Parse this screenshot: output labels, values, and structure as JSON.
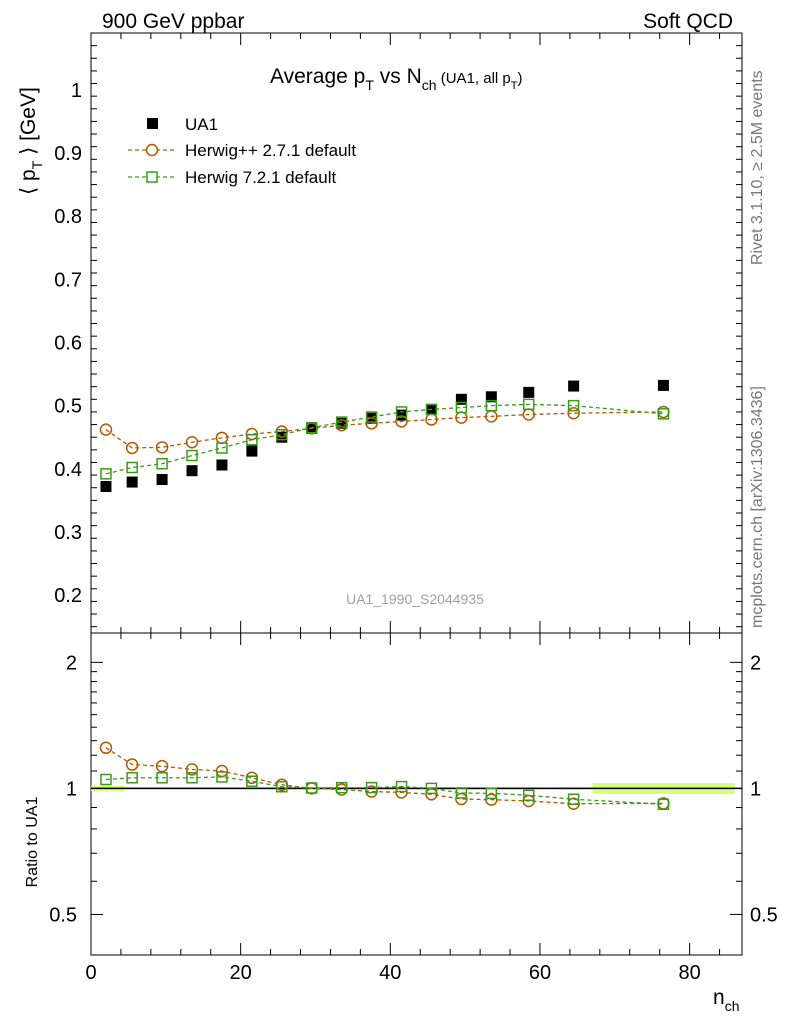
{
  "header": {
    "left": "900 GeV ppbar",
    "right": "Soft QCD"
  },
  "side_labels": {
    "rivet": "Rivet 3.1.10, ≥ 2.5M events",
    "mcplots": "mcplots.cern.ch [arXiv:1306.3436]"
  },
  "chart_data": [
    {
      "type": "scatter",
      "title": "Average pT vs Nch (UA1, all pT)",
      "title_parts": {
        "main": "Average p",
        "sub1": "T",
        "mid": " vs N",
        "sub2": "ch",
        "small": " (UA1, all p",
        "sub3": "T",
        "end": ")"
      },
      "ylabel": "⟨ pT ⟩ [GeV]",
      "ylabel_parts": {
        "open": "⟨ p",
        "sub": "T",
        "close": " ⟩ [GeV]"
      },
      "xlim": [
        0,
        87
      ],
      "ylim": [
        0.14,
        1.09
      ],
      "yticks": [
        "0.2",
        "0.3",
        "0.4",
        "0.5",
        "0.6",
        "0.7",
        "0.8",
        "0.9",
        "1"
      ],
      "watermark": "UA1_1990_S2044935",
      "legend_position": "top-left",
      "series": [
        {
          "name": "UA1",
          "color": "#000000",
          "marker": "filled-square",
          "x": [
            2,
            5.5,
            9.5,
            13.5,
            17.5,
            21.5,
            25.5,
            29.5,
            33.5,
            37.5,
            41.5,
            45.5,
            49.5,
            53.5,
            58.5,
            64.5,
            76.5
          ],
          "y": [
            0.372,
            0.379,
            0.383,
            0.397,
            0.406,
            0.428,
            0.45,
            0.464,
            0.472,
            0.48,
            0.485,
            0.494,
            0.51,
            0.514,
            0.521,
            0.531,
            0.532
          ]
        },
        {
          "name": "Herwig++ 2.7.1 default",
          "color": "#b05a00",
          "marker": "open-circle",
          "x": [
            2,
            5.5,
            9.5,
            13.5,
            17.5,
            21.5,
            25.5,
            29.5,
            33.5,
            37.5,
            41.5,
            45.5,
            49.5,
            53.5,
            58.5,
            64.5,
            76.5
          ],
          "y": [
            0.462,
            0.433,
            0.434,
            0.442,
            0.449,
            0.455,
            0.459,
            0.464,
            0.469,
            0.472,
            0.475,
            0.478,
            0.481,
            0.483,
            0.486,
            0.488,
            0.49
          ]
        },
        {
          "name": "Herwig 7.2.1 default",
          "color": "#3a9a1a",
          "marker": "open-square",
          "x": [
            2,
            5.5,
            9.5,
            13.5,
            17.5,
            21.5,
            25.5,
            29.5,
            33.5,
            37.5,
            41.5,
            45.5,
            49.5,
            53.5,
            58.5,
            64.5,
            76.5
          ],
          "y": [
            0.392,
            0.402,
            0.408,
            0.421,
            0.433,
            0.446,
            0.454,
            0.465,
            0.474,
            0.482,
            0.49,
            0.494,
            0.497,
            0.5,
            0.502,
            0.5,
            0.487
          ]
        }
      ]
    },
    {
      "type": "scatter",
      "ylabel": "Ratio to UA1",
      "xlabel": "nch",
      "xlabel_parts": {
        "main": "n",
        "sub": "ch"
      },
      "xlim": [
        0,
        87
      ],
      "ylim": [
        0.4,
        2.35
      ],
      "y_scale": "log",
      "yticks": [
        "0.5",
        "1",
        "2"
      ],
      "xticks": [
        "0",
        "20",
        "40",
        "60",
        "80"
      ],
      "reference_band": "#ccff66",
      "series": [
        {
          "name": "Herwig++ 2.7.1 default",
          "color": "#b05a00",
          "marker": "open-circle",
          "x": [
            2,
            5.5,
            9.5,
            13.5,
            17.5,
            21.5,
            25.5,
            29.5,
            33.5,
            37.5,
            41.5,
            45.5,
            49.5,
            53.5,
            58.5,
            64.5,
            76.5
          ],
          "y": [
            1.25,
            1.14,
            1.13,
            1.11,
            1.1,
            1.06,
            1.02,
            1.0,
            0.994,
            0.983,
            0.978,
            0.968,
            0.943,
            0.94,
            0.933,
            0.919,
            0.921
          ]
        },
        {
          "name": "Herwig 7.2.1 default",
          "color": "#3a9a1a",
          "marker": "open-square",
          "x": [
            2,
            5.5,
            9.5,
            13.5,
            17.5,
            21.5,
            25.5,
            29.5,
            33.5,
            37.5,
            41.5,
            45.5,
            49.5,
            53.5,
            58.5,
            64.5,
            76.5
          ],
          "y": [
            1.05,
            1.06,
            1.06,
            1.06,
            1.065,
            1.04,
            1.009,
            1.002,
            1.004,
            1.004,
            1.01,
            1.0,
            0.975,
            0.973,
            0.963,
            0.942,
            0.916
          ]
        }
      ]
    }
  ]
}
